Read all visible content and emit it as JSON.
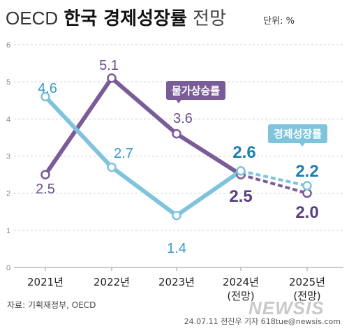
{
  "header": {
    "title_pre": "OECD",
    "title_main": "한국 경제성장률",
    "title_post": "전망",
    "unit": "단위: %"
  },
  "source": "자료: 기획재정부, OECD",
  "credit": "24.07.11 전진우 기자 618tue@newsis.com",
  "watermark": "NEWSIS",
  "chart_data": {
    "type": "line",
    "categories": [
      "2021년",
      "2022년",
      "2023년",
      "2024년",
      "2025년"
    ],
    "category_sublabels": [
      "",
      "",
      "",
      "(전망)",
      "(전망)"
    ],
    "ylim": [
      0,
      6
    ],
    "yticks": [
      0,
      1,
      2,
      3,
      4,
      5,
      6
    ],
    "grid": true,
    "forecast_from_index": 3,
    "series": [
      {
        "name": "물가상승률",
        "color": "#7a5c98",
        "values": [
          2.5,
          5.1,
          3.6,
          2.5,
          2.0
        ],
        "labels": [
          "2.5",
          "5.1",
          "3.6",
          "2.5",
          "2.0"
        ]
      },
      {
        "name": "경제성장률",
        "color": "#7fc3dc",
        "values": [
          4.6,
          2.7,
          1.4,
          2.6,
          2.2
        ],
        "labels": [
          "4.6",
          "2.7",
          "1.4",
          "2.6",
          "2.2"
        ]
      }
    ]
  }
}
